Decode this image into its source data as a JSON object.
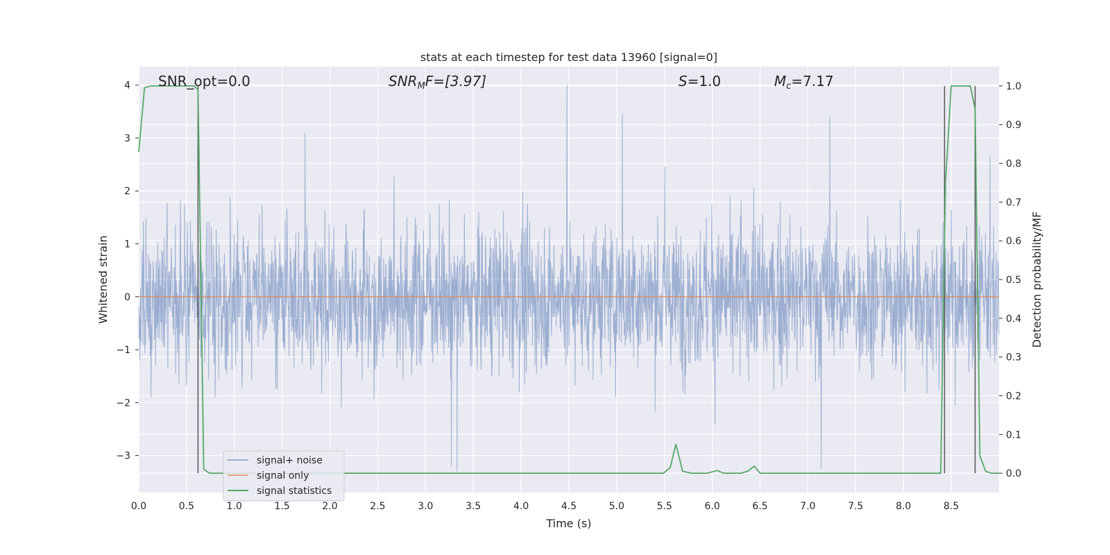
{
  "chart_data": {
    "type": "line",
    "title": "stats at each timestep for test data 13960 [signal=0]",
    "xlabel": "Time (s)",
    "ylabel": "Whitened strain",
    "y2label": "Detection probability/MF",
    "xlim": [
      0.0,
      9.0
    ],
    "ylim": [
      -3.7,
      4.35
    ],
    "y2lim": [
      -0.05,
      1.05
    ],
    "xticks": [
      "0.0",
      "0.5",
      "1.0",
      "1.5",
      "2.0",
      "2.5",
      "3.0",
      "3.5",
      "4.0",
      "4.5",
      "5.0",
      "5.5",
      "6.0",
      "6.5",
      "7.0",
      "7.5",
      "8.0",
      "8.5"
    ],
    "yticks": [
      "−3",
      "−2",
      "−1",
      "0",
      "1",
      "2",
      "3",
      "4"
    ],
    "y2ticks": [
      "0.0",
      "0.1",
      "0.2",
      "0.3",
      "0.4",
      "0.5",
      "0.6",
      "0.7",
      "0.8",
      "0.9",
      "1.0"
    ],
    "grid": true,
    "legend_position": "lower-left",
    "annotations": {
      "snr_opt": "SNR_opt=0.0",
      "snr_mf_prefix": "SNR",
      "snr_mf_sub": "M",
      "snr_mf_rest": "F=[3.97]",
      "s_label": "S",
      "s_rest": "=1.0",
      "mc_label": "M",
      "mc_sub": "c",
      "mc_rest": "=7.17"
    },
    "series": [
      {
        "name": "signal+ noise",
        "color": "#4c72b0",
        "axis": "left",
        "description": "dense whitened noise, amplitude roughly ±2 with spikes to ±4",
        "peaks": [
          {
            "x": 4.48,
            "y": 4.0
          },
          {
            "x": 5.06,
            "y": 3.45
          },
          {
            "x": 7.23,
            "y": 3.4
          },
          {
            "x": 1.74,
            "y": 3.1
          },
          {
            "x": 3.33,
            "y": -3.3
          },
          {
            "x": 7.14,
            "y": -3.25
          },
          {
            "x": 3.27,
            "y": -3.2
          }
        ]
      },
      {
        "name": "signal only",
        "color": "#dd8452",
        "axis": "left",
        "x": [
          0.0,
          9.0
        ],
        "y": [
          0.0,
          0.0
        ]
      },
      {
        "name": "signal statistics",
        "color": "#55a868",
        "axis": "right",
        "x": [
          0.0,
          0.06,
          0.12,
          0.2,
          0.3,
          0.4,
          0.5,
          0.58,
          0.62,
          0.68,
          0.74,
          0.8,
          1.0,
          2.0,
          3.0,
          4.0,
          5.0,
          5.49,
          5.56,
          5.62,
          5.69,
          5.78,
          5.95,
          6.05,
          6.12,
          6.3,
          6.37,
          6.44,
          6.5,
          6.58,
          7.0,
          8.0,
          8.39,
          8.44,
          8.5,
          8.6,
          8.7,
          8.75,
          8.8,
          8.86,
          8.92,
          9.0
        ],
        "y": [
          0.83,
          0.995,
          1.0,
          1.0,
          1.0,
          1.0,
          1.0,
          1.0,
          0.99,
          0.01,
          0.0,
          0.0,
          0.0,
          0.0,
          0.0,
          0.0,
          0.0,
          0.0,
          0.015,
          0.075,
          0.005,
          0.0,
          0.0,
          0.007,
          0.0,
          0.0,
          0.005,
          0.018,
          0.0,
          0.0,
          0.0,
          0.0,
          0.0,
          0.75,
          1.0,
          1.0,
          1.0,
          0.94,
          0.045,
          0.005,
          0.0,
          0.0
        ]
      }
    ],
    "vlines": [
      0.62,
      8.43,
      8.75
    ]
  }
}
